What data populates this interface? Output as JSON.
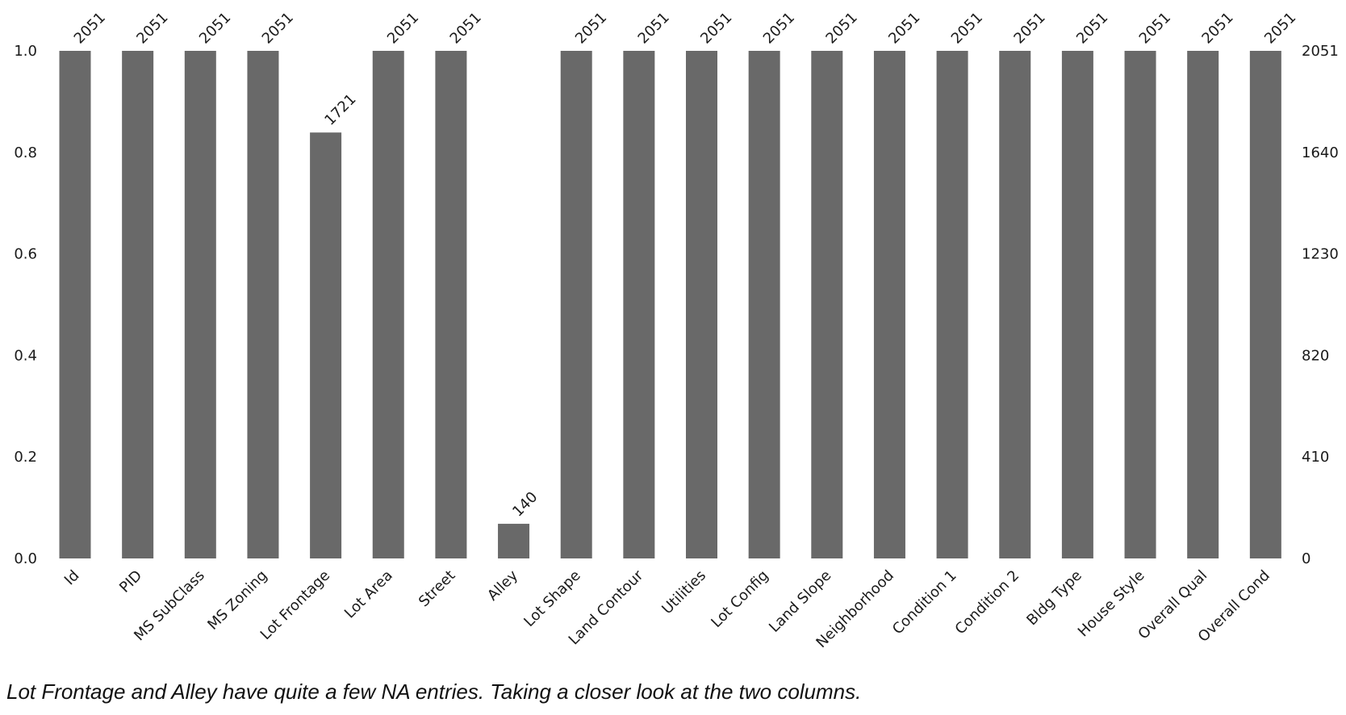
{
  "chart_data": {
    "type": "bar",
    "categories": [
      "Id",
      "PID",
      "MS SubClass",
      "MS Zoning",
      "Lot Frontage",
      "Lot Area",
      "Street",
      "Alley",
      "Lot Shape",
      "Land Contour",
      "Utilities",
      "Lot Config",
      "Land Slope",
      "Neighborhood",
      "Condition 1",
      "Condition 2",
      "Bldg Type",
      "House Style",
      "Overall Qual",
      "Overall Cond"
    ],
    "values": [
      2051,
      2051,
      2051,
      2051,
      1721,
      2051,
      2051,
      140,
      2051,
      2051,
      2051,
      2051,
      2051,
      2051,
      2051,
      2051,
      2051,
      2051,
      2051,
      2051
    ],
    "total": 2051,
    "left_axis": {
      "ylim": [
        0,
        1
      ],
      "ticks": [
        "0.0",
        "0.2",
        "0.4",
        "0.6",
        "0.8",
        "1.0"
      ]
    },
    "right_axis": {
      "ticks": [
        "0",
        "410",
        "820",
        "1230",
        "1640",
        "2051"
      ]
    },
    "bar_color": "#696969",
    "grid": false,
    "title": "",
    "xlabel": "",
    "ylabel": ""
  },
  "caption": "Lot Frontage and Alley have quite a few NA entries. Taking a closer look at the two columns."
}
